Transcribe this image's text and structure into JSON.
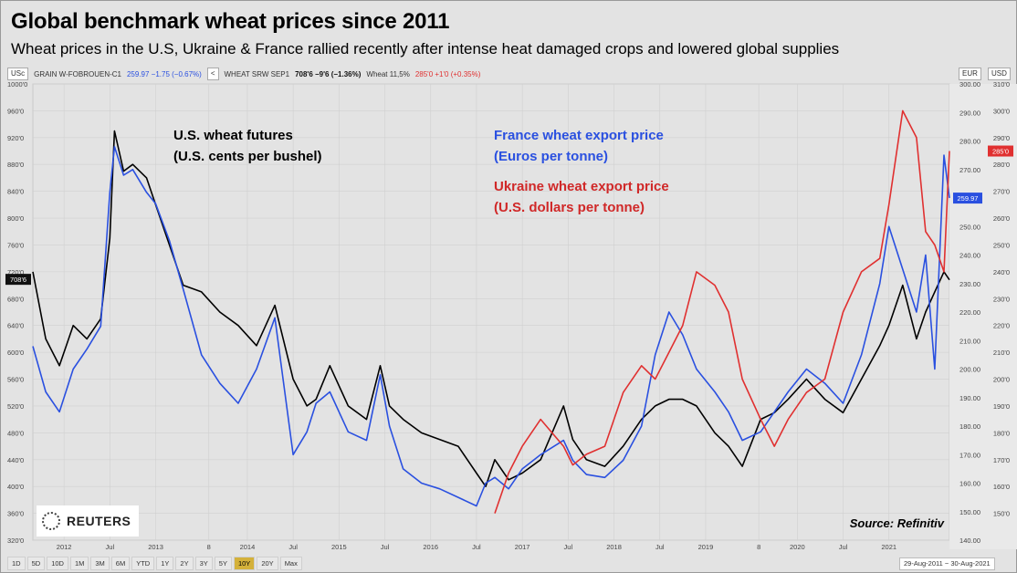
{
  "title": "Global benchmark wheat prices since 2011",
  "subtitle": "Wheat prices in the U.S, Ukraine & France rallied recently after intense heat damaged crops and lowered global supplies",
  "legend_bar": {
    "left_scale": "USc",
    "series1_name": "GRAIN W-FOBROUEN-C1",
    "series1_values": "259.97 −1.75 (−0.67%)",
    "collapse": "<",
    "series2_name": "WHEAT SRW SEP1",
    "series2_values": "708'6 −9'6 (−1.36%)",
    "series3_name": "Wheat 11,5%",
    "series3_values": "285'0 +1'0 (+0.35%)",
    "right_scale_1": "EUR",
    "right_scale_2": "USD"
  },
  "annotations": {
    "us_line1": "U.S. wheat futures",
    "us_line2": "(U.S. cents per bushel)",
    "fr_line1": "France wheat export price",
    "fr_line2": "(Euros per tonne)",
    "ua_line1": "Ukraine wheat export price",
    "ua_line2": "(U.S. dollars per tonne)"
  },
  "source": "Source: Refinitiv",
  "logo_text": "REUTERS",
  "toolbar": {
    "buttons": [
      "1D",
      "5D",
      "10D",
      "1M",
      "3M",
      "6M",
      "YTD",
      "1Y",
      "2Y",
      "3Y",
      "5Y",
      "10Y",
      "20Y",
      "Max"
    ],
    "active": "10Y"
  },
  "date_range": "29-Aug-2011 − 30-Aug-2021",
  "colors": {
    "us": "#000000",
    "france": "#2a50e0",
    "ukraine": "#e03030",
    "background": "#e3e3e3"
  },
  "chart_data": {
    "type": "line",
    "x_axis": {
      "labels": [
        "2012",
        "Jul",
        "2013",
        "8",
        "2014",
        "Jul",
        "2015",
        "Jul",
        "2016",
        "Jul",
        "2017",
        "Jul",
        "2018",
        "Jul",
        "2019",
        "8",
        "2020",
        "Jul",
        "2021"
      ],
      "range": [
        "2011-08-29",
        "2021-08-30"
      ]
    },
    "y_left": {
      "unit": "USc",
      "ticks": [
        "1000'0",
        "960'0",
        "920'0",
        "880'0",
        "840'0",
        "800'0",
        "760'0",
        "720'0",
        "680'0",
        "640'0",
        "600'0",
        "560'0",
        "520'0",
        "480'0",
        "440'0",
        "400'0",
        "360'0",
        "320'0"
      ],
      "range": [
        320,
        1000
      ],
      "last_label": "708'6"
    },
    "y_right_eur": {
      "unit": "EUR",
      "ticks": [
        "300.00",
        "290.00",
        "280.00",
        "270.00",
        "260.00",
        "250.00",
        "240.00",
        "230.00",
        "220.00",
        "210.00",
        "200.00",
        "190.00",
        "180.00",
        "170.00",
        "160.00",
        "150.00",
        "140.00"
      ],
      "range": [
        140,
        300
      ],
      "last_label": "259.97"
    },
    "y_right_usd": {
      "unit": "USD",
      "ticks": [
        "310'0",
        "300'0",
        "290'0",
        "280'0",
        "270'0",
        "260'0",
        "250'0",
        "240'0",
        "230'0",
        "220'0",
        "210'0",
        "200'0",
        "190'0",
        "180'0",
        "170'0",
        "160'0",
        "150'0"
      ],
      "range": [
        140,
        310
      ],
      "last_label": "285'0"
    },
    "series": [
      {
        "name": "WHEAT SRW SEP1",
        "unit": "USc per bushel",
        "axis": "left",
        "x": [
          2011.66,
          2011.8,
          2011.95,
          2012.1,
          2012.25,
          2012.4,
          2012.5,
          2012.55,
          2012.65,
          2012.75,
          2012.9,
          2013.0,
          2013.15,
          2013.3,
          2013.5,
          2013.7,
          2013.9,
          2014.1,
          2014.3,
          2014.5,
          2014.65,
          2014.75,
          2014.9,
          2015.1,
          2015.3,
          2015.45,
          2015.55,
          2015.7,
          2015.9,
          2016.1,
          2016.3,
          2016.5,
          2016.6,
          2016.7,
          2016.85,
          2017.0,
          2017.2,
          2017.45,
          2017.55,
          2017.7,
          2017.9,
          2018.1,
          2018.3,
          2018.45,
          2018.6,
          2018.75,
          2018.9,
          2019.1,
          2019.25,
          2019.4,
          2019.6,
          2019.75,
          2019.9,
          2020.1,
          2020.3,
          2020.5,
          2020.7,
          2020.9,
          2021.0,
          2021.15,
          2021.3,
          2021.4,
          2021.5,
          2021.6,
          2021.66
        ],
        "values": [
          720,
          620,
          580,
          640,
          620,
          650,
          770,
          930,
          870,
          880,
          860,
          820,
          760,
          700,
          690,
          660,
          640,
          610,
          670,
          560,
          520,
          530,
          580,
          520,
          500,
          580,
          520,
          500,
          480,
          470,
          460,
          420,
          400,
          440,
          410,
          420,
          440,
          520,
          470,
          440,
          430,
          460,
          500,
          520,
          530,
          530,
          520,
          480,
          460,
          430,
          500,
          510,
          530,
          560,
          530,
          510,
          560,
          610,
          640,
          700,
          620,
          660,
          690,
          720,
          708
        ]
      },
      {
        "name": "GRAIN W-FOBROUEN-C1",
        "unit": "EUR per tonne",
        "axis": "right_eur",
        "x": [
          2011.66,
          2011.8,
          2011.95,
          2012.1,
          2012.25,
          2012.4,
          2012.5,
          2012.55,
          2012.65,
          2012.75,
          2012.9,
          2013.0,
          2013.15,
          2013.3,
          2013.5,
          2013.7,
          2013.9,
          2014.1,
          2014.3,
          2014.5,
          2014.65,
          2014.75,
          2014.9,
          2015.1,
          2015.3,
          2015.45,
          2015.55,
          2015.7,
          2015.9,
          2016.1,
          2016.3,
          2016.5,
          2016.6,
          2016.7,
          2016.85,
          2017.0,
          2017.2,
          2017.45,
          2017.55,
          2017.7,
          2017.9,
          2018.1,
          2018.3,
          2018.45,
          2018.6,
          2018.75,
          2018.9,
          2019.1,
          2019.25,
          2019.4,
          2019.6,
          2019.75,
          2019.9,
          2020.1,
          2020.3,
          2020.5,
          2020.7,
          2020.9,
          2021.0,
          2021.15,
          2021.3,
          2021.4,
          2021.5,
          2021.6,
          2021.66
        ],
        "values": [
          208,
          192,
          185,
          200,
          207,
          215,
          262,
          278,
          268,
          270,
          262,
          258,
          245,
          228,
          205,
          195,
          188,
          200,
          218,
          170,
          178,
          188,
          192,
          178,
          175,
          198,
          180,
          165,
          160,
          158,
          155,
          152,
          160,
          162,
          158,
          165,
          170,
          175,
          168,
          163,
          162,
          168,
          180,
          205,
          220,
          212,
          200,
          192,
          185,
          175,
          178,
          185,
          192,
          200,
          195,
          188,
          205,
          230,
          250,
          235,
          220,
          240,
          200,
          275,
          260
        ]
      },
      {
        "name": "Wheat 11,5%",
        "unit": "USD per tonne",
        "axis": "right_usd",
        "x": [
          2016.7,
          2016.85,
          2017.0,
          2017.2,
          2017.45,
          2017.55,
          2017.7,
          2017.9,
          2018.1,
          2018.3,
          2018.45,
          2018.6,
          2018.75,
          2018.9,
          2019.1,
          2019.25,
          2019.4,
          2019.6,
          2019.75,
          2019.9,
          2020.1,
          2020.3,
          2020.5,
          2020.7,
          2020.9,
          2021.0,
          2021.15,
          2021.3,
          2021.4,
          2021.5,
          2021.6,
          2021.66
        ],
        "values": [
          150,
          165,
          175,
          185,
          175,
          168,
          172,
          175,
          195,
          205,
          200,
          210,
          220,
          240,
          235,
          225,
          200,
          185,
          175,
          185,
          195,
          200,
          225,
          240,
          245,
          265,
          300,
          290,
          255,
          250,
          240,
          285
        ]
      }
    ],
    "grid": true
  }
}
